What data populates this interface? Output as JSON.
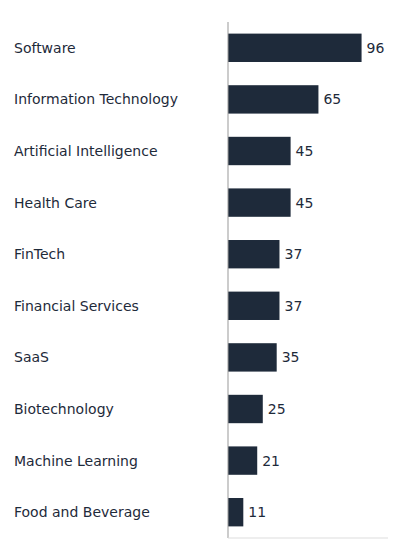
{
  "chart_data": {
    "type": "bar",
    "orientation": "horizontal",
    "categories": [
      "Food and Beverage",
      "Machine Learning",
      "Biotechnology",
      "SaaS",
      "Financial Services",
      "FinTech",
      "Health Care",
      "Artificial Intelligence",
      "Information Technology",
      "Software"
    ],
    "values": [
      11,
      21,
      25,
      35,
      37,
      37,
      45,
      45,
      65,
      96
    ],
    "color": "#1e2a3a",
    "xlim": [
      0,
      115
    ],
    "data_labels": true,
    "tick_labels": "y",
    "grid": false
  }
}
